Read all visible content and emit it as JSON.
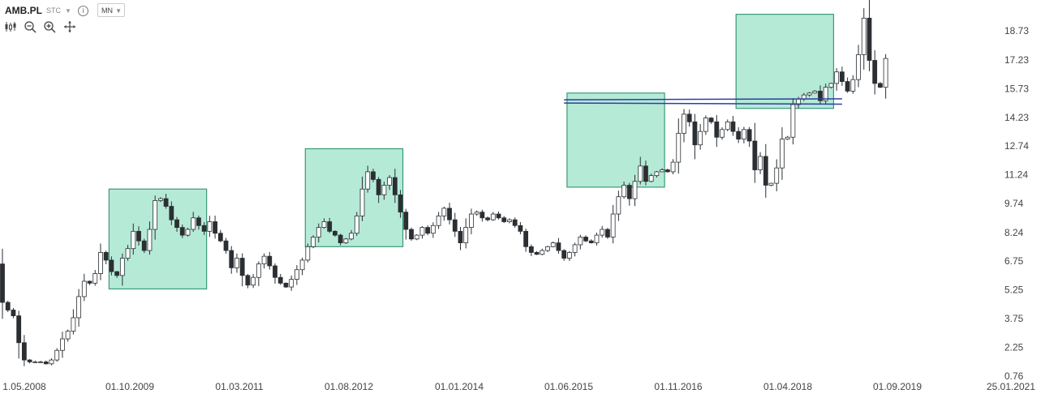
{
  "header": {
    "symbol": "AMB.PL",
    "exchange": "STC",
    "timeframe": "MN",
    "tools": [
      "candles-icon",
      "zoom-out-icon",
      "zoom-in-icon",
      "pan-icon"
    ]
  },
  "colors": {
    "up_candle_fill": "#ffffff",
    "down_candle_fill": "#2b2f33",
    "box_fill": "#b5ead7",
    "box_stroke": "#3a9a76",
    "line_color": "#2e3f9e"
  },
  "chart_data": {
    "type": "candlestick",
    "y_ticks": [
      "18.73",
      "17.23",
      "15.73",
      "14.23",
      "12.74",
      "11.24",
      "9.74",
      "8.24",
      "6.75",
      "5.25",
      "3.75",
      "2.25",
      "0.76"
    ],
    "x_ticks": [
      "1.05.2008",
      "01.10.2009",
      "01.03.2011",
      "01.08.2012",
      "01.01.2014",
      "01.06.2015",
      "01.11.2016",
      "01.04.2018",
      "01.09.2019",
      "25.01.2021"
    ],
    "ylim": [
      0.76,
      19.5
    ],
    "period": "monthly",
    "start": "2008-05",
    "closes": [
      4.6,
      4.2,
      3.9,
      2.5,
      1.6,
      1.5,
      1.5,
      1.5,
      1.4,
      1.6,
      2.1,
      2.7,
      3.1,
      3.8,
      4.9,
      5.7,
      5.6,
      6.1,
      7.2,
      6.8,
      6.2,
      6.0,
      6.9,
      7.4,
      8.3,
      7.8,
      7.3,
      8.4,
      9.9,
      10.0,
      9.6,
      8.9,
      8.5,
      8.1,
      8.4,
      9.0,
      8.6,
      8.3,
      8.8,
      8.2,
      7.8,
      7.3,
      6.4,
      6.9,
      6.0,
      5.5,
      5.9,
      6.6,
      7.0,
      6.5,
      5.9,
      5.6,
      5.4,
      5.8,
      6.3,
      6.8,
      7.5,
      8.0,
      8.5,
      8.8,
      8.3,
      8.1,
      7.7,
      7.9,
      8.2,
      9.1,
      10.5,
      11.4,
      11.0,
      10.2,
      10.7,
      11.1,
      10.2,
      9.3,
      8.4,
      7.9,
      8.1,
      8.5,
      8.2,
      8.6,
      9.1,
      9.5,
      8.9,
      8.3,
      7.7,
      8.5,
      9.2,
      9.3,
      9.0,
      8.9,
      9.2,
      9.0,
      8.8,
      8.9,
      8.6,
      8.3,
      7.5,
      7.2,
      7.1,
      7.3,
      7.5,
      7.7,
      7.3,
      6.9,
      7.2,
      7.6,
      8.0,
      7.8,
      7.7,
      8.1,
      8.4,
      8.0,
      9.2,
      10.1,
      10.7,
      10.0,
      10.9,
      11.7,
      10.9,
      11.2,
      11.4,
      11.5,
      11.4,
      11.9,
      13.4,
      14.4,
      14.0,
      12.8,
      13.5,
      14.2,
      14.0,
      13.2,
      13.6,
      14.0,
      13.5,
      13.1,
      13.6,
      13.0,
      11.5,
      12.2,
      10.7,
      10.8,
      11.6,
      13.1,
      13.2,
      14.9,
      15.2,
      15.4,
      15.5,
      15.6,
      15.1,
      15.8,
      16.0,
      16.6,
      16.1,
      15.6,
      16.2,
      17.5,
      19.4,
      17.2,
      16.0,
      15.8,
      17.3
    ]
  },
  "boxes": [
    {
      "x0": "2010-01",
      "x1": "2011-06",
      "y0": 5.3,
      "y1": 10.5
    },
    {
      "x0": "2013-01",
      "x1": "2014-06",
      "y0": 7.5,
      "y1": 12.6
    },
    {
      "x0": "2017-01",
      "x1": "2018-06",
      "y0": 10.6,
      "y1": 15.5
    },
    {
      "x0": "2019-08",
      "x1": "2021-01",
      "y0": 14.7,
      "y1": 19.6
    }
  ],
  "lines": [
    {
      "x0": "2016-12",
      "x1": "2021-03",
      "y0": 15.15,
      "y1": 15.2
    },
    {
      "x0": "2016-12",
      "x1": "2021-03",
      "y0": 14.98,
      "y1": 14.92
    }
  ]
}
